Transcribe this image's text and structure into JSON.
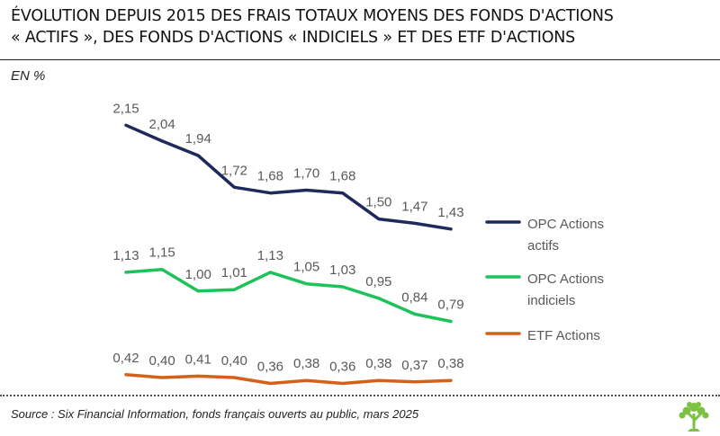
{
  "header": {
    "title_line1": "ÉVOLUTION DEPUIS 2015 DES FRAIS TOTAUX MOYENS DES FONDS D'ACTIONS",
    "title_line2": "« ACTIFS », DES FONDS D'ACTIONS « INDICIELS » ET DES ETF D'ACTIONS",
    "unit": "EN %"
  },
  "footer": {
    "source": "Source : Six Financial Information, fonds français ouverts au public, mars 2025"
  },
  "logo": {
    "icon": "tree-icon",
    "color": "#7cc242"
  },
  "chart_data": {
    "type": "line",
    "title": "ÉVOLUTION DEPUIS 2015 DES FRAIS TOTAUX MOYENS DES FONDS D'ACTIONS « ACTIFS », DES FONDS D'ACTIONS « INDICIELS » ET DES ETF D'ACTIONS",
    "ylabel": "EN %",
    "ylim": [
      0.25,
      2.3
    ],
    "grid": false,
    "x_axis_visible": false,
    "legend_position": "right",
    "series": [
      {
        "name": "OPC Actions actifs",
        "legend_lines": [
          "OPC Actions",
          "actifs"
        ],
        "color": "#1f2a5c",
        "values": [
          2.15,
          2.04,
          1.94,
          1.72,
          1.68,
          1.7,
          1.68,
          1.5,
          1.47,
          1.43
        ],
        "labels": [
          "2,15",
          "2,04",
          "1,94",
          "1,72",
          "1,68",
          "1,70",
          "1,68",
          "1,50",
          "1,47",
          "1,43"
        ]
      },
      {
        "name": "OPC Actions indiciels",
        "legend_lines": [
          "OPC Actions",
          "indiciels"
        ],
        "color": "#1ec25a",
        "values": [
          1.13,
          1.15,
          1.0,
          1.01,
          1.13,
          1.05,
          1.03,
          0.95,
          0.84,
          0.79
        ],
        "labels": [
          "1,13",
          "1,15",
          "1,00",
          "1,01",
          "1,13",
          "1,05",
          "1,03",
          "0,95",
          "0,84",
          "0,79"
        ]
      },
      {
        "name": "ETF Actions",
        "legend_lines": [
          "ETF Actions"
        ],
        "color": "#d4601c",
        "values": [
          0.42,
          0.4,
          0.41,
          0.4,
          0.36,
          0.38,
          0.36,
          0.38,
          0.37,
          0.38
        ],
        "labels": [
          "0,42",
          "0,40",
          "0,41",
          "0,40",
          "0,36",
          "0,38",
          "0,36",
          "0,38",
          "0,37",
          "0,38"
        ]
      }
    ]
  }
}
